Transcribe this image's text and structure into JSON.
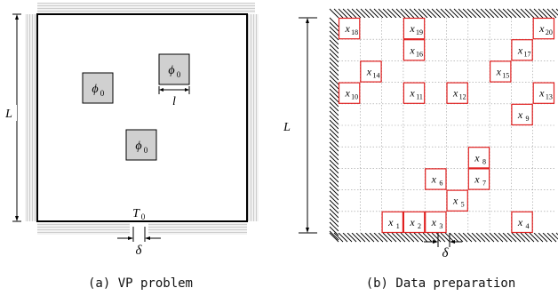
{
  "panel_a": {
    "caption": "(a)  VP problem",
    "label_L": "L",
    "label_T0": "T",
    "label_T0_sub": "0",
    "label_delta": "δ",
    "label_l": "l",
    "phi": "ϕ",
    "phi_sub": "0",
    "fill_color": "#d0d0d0",
    "hatch_color": "#bdbdbd"
  },
  "panel_b": {
    "caption": "(b)  Data preparation",
    "label_L": "L",
    "label_delta": "δ",
    "var_letter": "x",
    "accent": "#e02020",
    "cells": [
      {
        "id": "18",
        "col": 0,
        "row": 0
      },
      {
        "id": "19",
        "col": 3,
        "row": 0
      },
      {
        "id": "20",
        "col": 9,
        "row": 0
      },
      {
        "id": "16",
        "col": 3,
        "row": 1
      },
      {
        "id": "17",
        "col": 8,
        "row": 1
      },
      {
        "id": "14",
        "col": 1,
        "row": 2
      },
      {
        "id": "15",
        "col": 7,
        "row": 2
      },
      {
        "id": "10",
        "col": 0,
        "row": 3
      },
      {
        "id": "11",
        "col": 3,
        "row": 3
      },
      {
        "id": "12",
        "col": 5,
        "row": 3
      },
      {
        "id": "13",
        "col": 9,
        "row": 3
      },
      {
        "id": "9",
        "col": 8,
        "row": 4
      },
      {
        "id": "8",
        "col": 6,
        "row": 6
      },
      {
        "id": "6",
        "col": 4,
        "row": 7
      },
      {
        "id": "7",
        "col": 6,
        "row": 7
      },
      {
        "id": "5",
        "col": 5,
        "row": 8
      },
      {
        "id": "1",
        "col": 2,
        "row": 9
      },
      {
        "id": "2",
        "col": 3,
        "row": 9
      },
      {
        "id": "3",
        "col": 4,
        "row": 9
      },
      {
        "id": "4",
        "col": 8,
        "row": 9
      }
    ]
  }
}
